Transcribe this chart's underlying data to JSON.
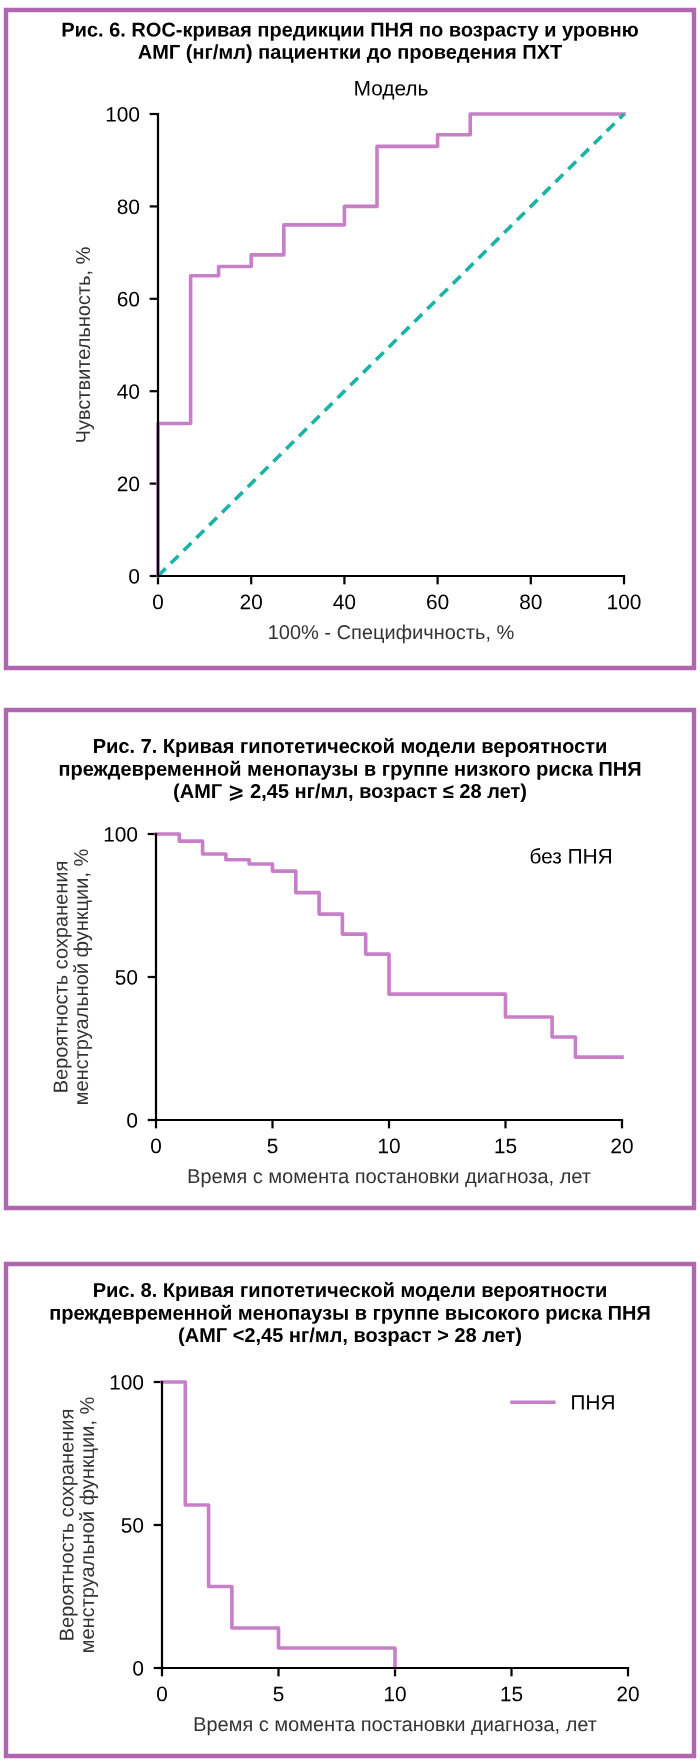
{
  "chart_data": [
    {
      "type": "step",
      "title": "Рис. 6. ROC-кривая предикции ПНЯ по возрасту и уровню\nАМГ (нг/мл) пациентки до проведения ПХТ",
      "subtitle": "Модель",
      "xlabel": "100% - Специфичность, %",
      "ylabel": "Чувствительность, %",
      "series": [
        {
          "color": "#c77fc8",
          "x": [
            0,
            0,
            7,
            13,
            20,
            27,
            40,
            47,
            60,
            67,
            100
          ],
          "values": [
            0,
            33,
            65,
            67,
            69.5,
            76,
            80,
            93,
            95.5,
            100,
            100
          ]
        },
        {
          "type": "line",
          "color": "#1ab3a6",
          "line_style": "dashed",
          "x": [
            0,
            100
          ],
          "values": [
            0,
            100
          ]
        }
      ],
      "xlim": [
        0,
        100
      ],
      "ylim": [
        0,
        100
      ],
      "xticks": [
        0,
        20,
        40,
        60,
        80,
        100
      ],
      "yticks": [
        0,
        20,
        40,
        60,
        80,
        100
      ],
      "grid": false,
      "legend": false
    },
    {
      "type": "step",
      "title": "Рис. 7. Кривая гипотетической модели вероятности\nпреждевременной менопаузы в группе низкого риска ПНЯ\n(АМГ ⩾ 2,45 нг/мл, возраст ≤ 28 лет)",
      "xlabel": "Время с момента постановки диагноза, лет",
      "ylabel": "Вероятность сохранения\nменструальной функции, %",
      "annotations": [
        "без ПНЯ"
      ],
      "series": [
        {
          "color": "#c77fc8",
          "x": [
            0,
            1,
            2,
            3,
            4,
            5,
            6,
            7,
            8,
            9,
            10,
            15,
            17,
            18,
            20
          ],
          "values": [
            100,
            97.5,
            93,
            91,
            89.5,
            87,
            79.5,
            72,
            65,
            58,
            44,
            36,
            29,
            22,
            22
          ]
        }
      ],
      "xlim": [
        0,
        20
      ],
      "ylim": [
        0,
        100
      ],
      "xticks": [
        0,
        5,
        10,
        15,
        20
      ],
      "yticks": [
        0,
        50,
        100
      ],
      "grid": false,
      "legend": false
    },
    {
      "type": "step",
      "title": "Рис. 8. Кривая гипотетической модели вероятности\nпреждевременной менопаузы в группе высокого риска ПНЯ\n(АМГ <2,45 нг/мл, возраст > 28 лет)",
      "xlabel": "Время с момента постановки диагноза, лет",
      "ylabel": "Вероятность сохранения\nменструальной функции, %",
      "series": [
        {
          "name": "ПНЯ",
          "color": "#c77fc8",
          "x": [
            0,
            1,
            2,
            3,
            5,
            10,
            10
          ],
          "values": [
            100,
            57,
            28.5,
            14,
            7,
            7,
            0
          ]
        }
      ],
      "xlim": [
        0,
        20
      ],
      "ylim": [
        0,
        100
      ],
      "xticks": [
        0,
        5,
        10,
        15,
        20
      ],
      "yticks": [
        0,
        50,
        100
      ],
      "grid": false,
      "legend": "top right"
    }
  ]
}
